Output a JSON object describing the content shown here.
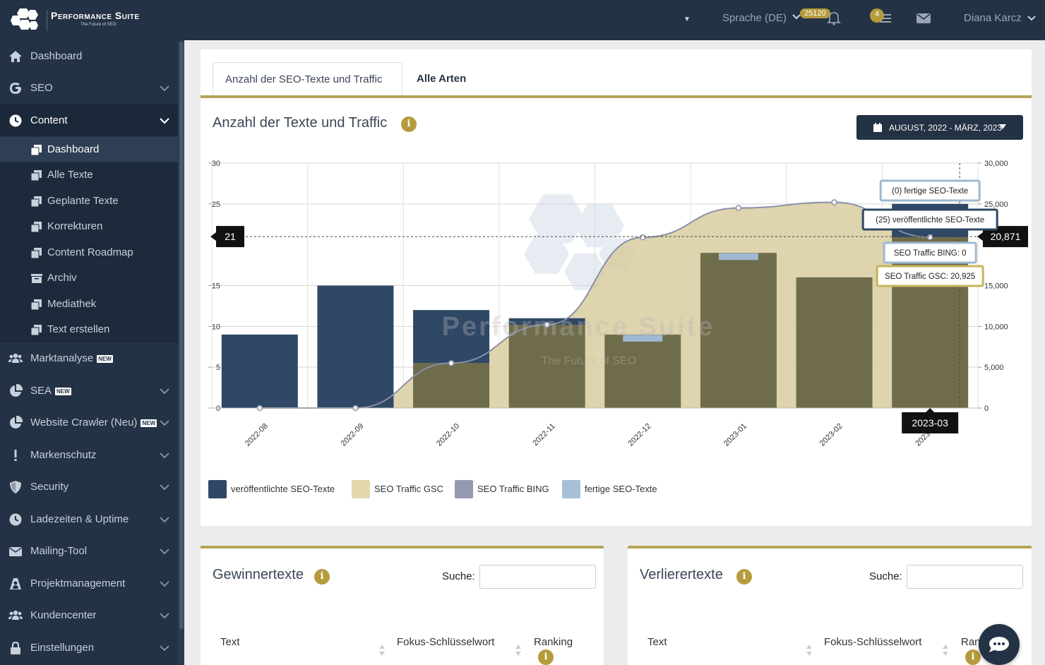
{
  "header": {
    "logo_name": "Performance Suite",
    "logo_tagline": "The Future of SEO",
    "language": "Sprache (DE)",
    "notification_count": "25120",
    "task_count": "4",
    "user_name": "Diana Karcz"
  },
  "sidebar": {
    "items": [
      {
        "label": "Dashboard",
        "icon": "home-icon"
      },
      {
        "label": "SEO",
        "icon": "google-icon"
      },
      {
        "label": "Content",
        "icon": "clock-icon"
      },
      {
        "label": "Marktanalyse",
        "icon": "users-icon",
        "badge": "NEW"
      },
      {
        "label": "SEA",
        "icon": "pie-chart-icon",
        "badge": "NEW"
      },
      {
        "label": "Website Crawler (Neu)",
        "icon": "pie-chart-icon",
        "badge": "NEW"
      },
      {
        "label": "Markenschutz",
        "icon": "exclamation-icon"
      },
      {
        "label": "Security",
        "icon": "shield-icon"
      },
      {
        "label": "Ladezeiten & Uptime",
        "icon": "clock-icon"
      },
      {
        "label": "Mailing-Tool",
        "icon": "envelope-icon"
      },
      {
        "label": "Projektmanagement",
        "icon": "people-icon"
      },
      {
        "label": "Kundencenter",
        "icon": "users-icon"
      },
      {
        "label": "Einstellungen",
        "icon": "lock-icon"
      }
    ],
    "content_sub": [
      {
        "label": "Dashboard"
      },
      {
        "label": "Alle Texte"
      },
      {
        "label": "Geplante Texte"
      },
      {
        "label": "Korrekturen"
      },
      {
        "label": "Content Roadmap"
      },
      {
        "label": "Archiv"
      },
      {
        "label": "Mediathek"
      },
      {
        "label": "Text erstellen"
      }
    ]
  },
  "main": {
    "tabs": [
      {
        "label": "Anzahl der SEO-Texte und Traffic"
      },
      {
        "label": "Alle Arten"
      }
    ],
    "chart_title": "Anzahl der Texte und Traffic",
    "date_range": "AUGUST, 2022 - MÄRZ, 2023",
    "watermark_name": "Performance Suite",
    "watermark_tagline": "The Future of SEO"
  },
  "chart_data": {
    "type": "bar",
    "categories": [
      "2022-08",
      "2022-09",
      "2022-10",
      "2022-11",
      "2022-12",
      "2023-01",
      "2023-02",
      "2023-03"
    ],
    "series": [
      {
        "name": "veröffentlichte SEO-Texte",
        "axis": "left",
        "kind": "bar",
        "color": "#2f4866",
        "values": [
          9,
          15,
          12,
          11,
          9,
          19,
          16,
          25
        ]
      },
      {
        "name": "fertige SEO-Texte",
        "axis": "left",
        "kind": "bar",
        "color": "#9eb9d0",
        "values": [
          0,
          0,
          0,
          0,
          1,
          1,
          0,
          0
        ]
      },
      {
        "name": "SEO Traffic GSC",
        "axis": "right",
        "kind": "area",
        "color": "#d8cca0",
        "values": [
          0,
          0,
          5500,
          10200,
          20900,
          24500,
          25200,
          20925
        ]
      },
      {
        "name": "SEO Traffic BING",
        "axis": "right",
        "kind": "line",
        "color": "#8a8fa6",
        "values": [
          0,
          0,
          0,
          0,
          0,
          0,
          0,
          0
        ]
      }
    ],
    "left_ticks": [
      "0",
      "5",
      "10",
      "15",
      "25",
      "30"
    ],
    "right_ticks": [
      "0",
      "5,000",
      "10,000",
      "15,000",
      "25,000",
      "30,000"
    ],
    "ylim_left": [
      0,
      30
    ],
    "ylim_right": [
      0,
      30000
    ],
    "crosshair": {
      "left_value": "21",
      "right_value": "20,871",
      "x_label": "2023-03"
    },
    "tooltip": [
      {
        "text": "(0) fertige SEO-Texte",
        "color": "#9eb9d0"
      },
      {
        "text": "(25) veröffentlichte SEO-Texte",
        "color": "#2f4866"
      },
      {
        "text": "SEO Traffic BING: 0",
        "color": "#9eb9d0"
      },
      {
        "text": "SEO Traffic GSC: 20,925",
        "color": "#c8b45a"
      }
    ]
  },
  "legend": [
    {
      "label": "veröffentlichte SEO-Texte",
      "color": "#2f4866"
    },
    {
      "label": "SEO Traffic GSC",
      "color": "#e3d7ad"
    },
    {
      "label": "SEO Traffic BING",
      "color": "#9698ae"
    },
    {
      "label": "fertige SEO-Texte",
      "color": "#a8c0d6"
    }
  ],
  "winners": {
    "title": "Gewinnertexte",
    "search_label": "Suche:",
    "columns": [
      "Text",
      "Fokus-Schlüsselwort",
      "Ranking"
    ]
  },
  "losers": {
    "title": "Verlierertexte",
    "search_label": "Suche:",
    "columns": [
      "Text",
      "Fokus-Schlüsselwort",
      "Ran"
    ]
  }
}
